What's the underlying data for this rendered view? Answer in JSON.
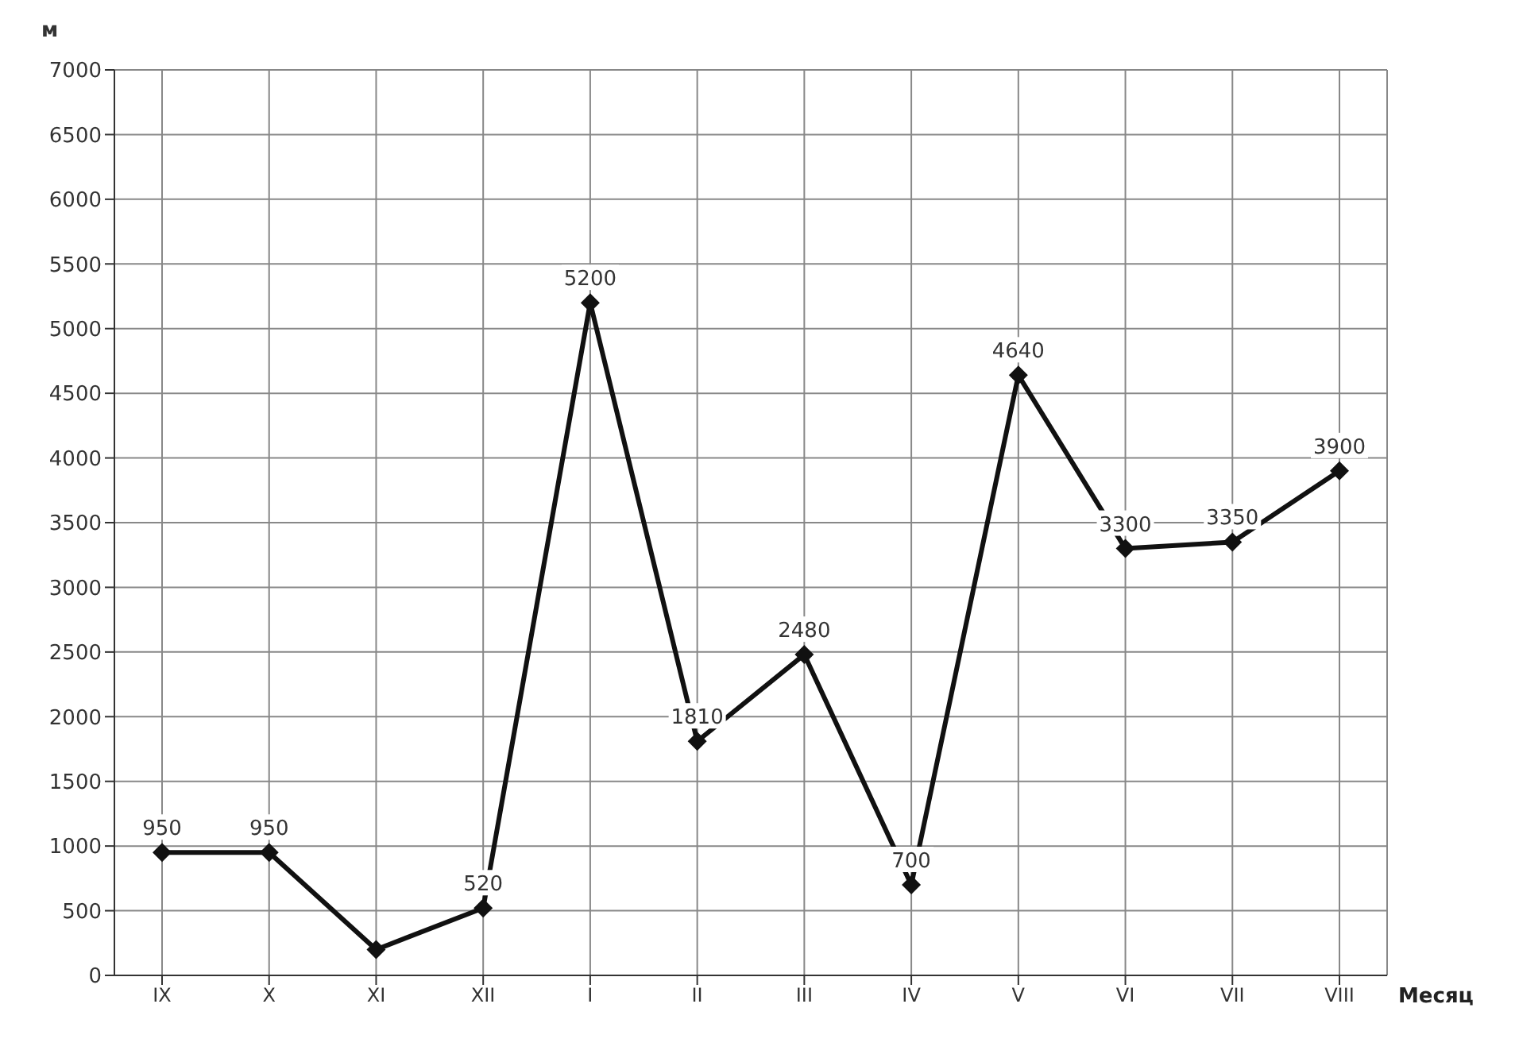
{
  "chart_data": {
    "type": "line",
    "ylabel": "м",
    "xlabel": "Месяц",
    "categories": [
      "IX",
      "X",
      "XI",
      "XII",
      "I",
      "II",
      "III",
      "IV",
      "V",
      "VI",
      "VII",
      "VIII"
    ],
    "series": [
      {
        "color": "#111111",
        "values": [
          950,
          950,
          200,
          520,
          5200,
          1810,
          2480,
          700,
          4640,
          3300,
          3350,
          3900
        ],
        "value_labels": [
          "950",
          "950",
          null,
          "520",
          "5200",
          "1810",
          "2480",
          "700",
          "4640",
          "3300",
          "3350",
          "3900"
        ]
      }
    ],
    "ylim": [
      0,
      7000
    ],
    "yticks": [
      0,
      500,
      1000,
      1500,
      2000,
      2500,
      3000,
      3500,
      4000,
      4500,
      5000,
      5500,
      6000,
      6500,
      7000
    ],
    "grid": true,
    "legend": false,
    "marker": "diamond",
    "line_style": "solid"
  }
}
